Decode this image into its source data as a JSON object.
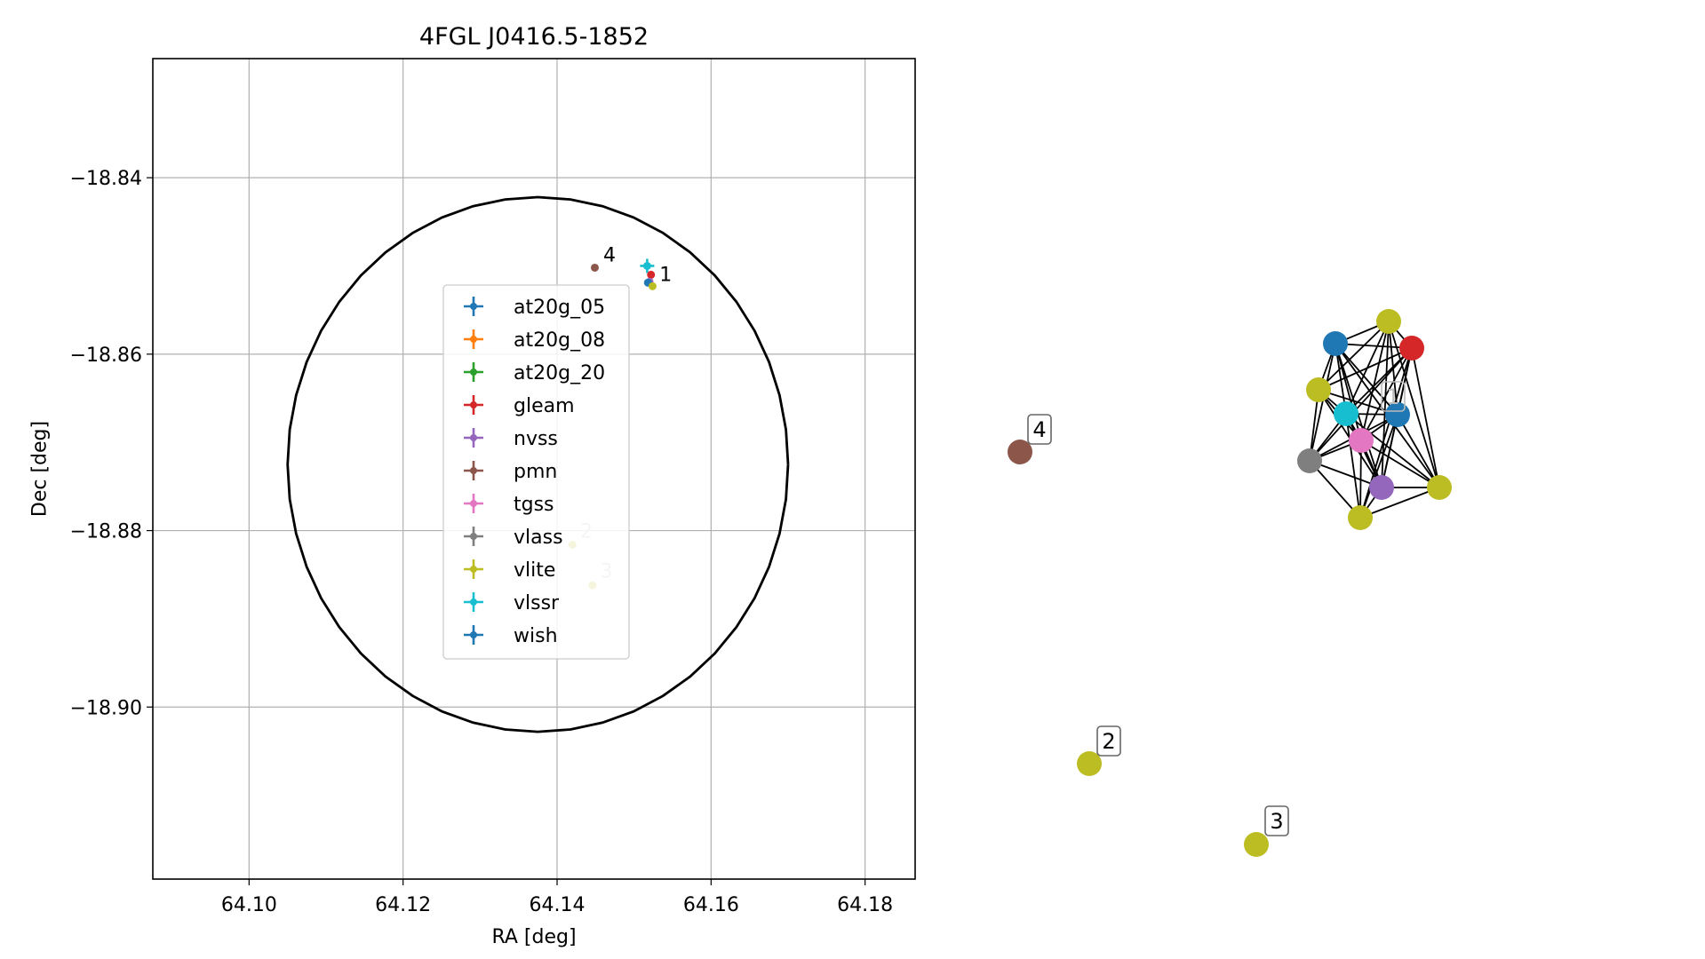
{
  "chart_data": [
    {
      "type": "scatter",
      "title": "4FGL J0416.5-1852",
      "xlabel": "RA [deg]",
      "ylabel": "Dec [deg]",
      "xlim": [
        64.0875,
        64.1865
      ],
      "ylim": [
        -18.9195,
        -18.8265
      ],
      "xticks": [
        64.1,
        64.12,
        64.14,
        64.16,
        64.18
      ],
      "xtick_labels": [
        "64.10",
        "64.12",
        "64.14",
        "64.16",
        "64.18"
      ],
      "yticks": [
        -18.84,
        -18.86,
        -18.88,
        -18.9
      ],
      "ytick_labels": [
        "−18.84",
        "−18.86",
        "−18.88",
        "−18.90"
      ],
      "grid": true,
      "legend_position": "center",
      "error_ellipse": {
        "ra": 64.1375,
        "dec": -18.8725,
        "radius_ra": 0.0325,
        "radius_dec": 0.0303
      },
      "legend": [
        {
          "name": "at20g_05",
          "color": "#1f77b4"
        },
        {
          "name": "at20g_08",
          "color": "#ff7f0e"
        },
        {
          "name": "at20g_20",
          "color": "#2ca02c"
        },
        {
          "name": "gleam",
          "color": "#d62728"
        },
        {
          "name": "nvss",
          "color": "#9467bd"
        },
        {
          "name": "pmn",
          "color": "#8c564b"
        },
        {
          "name": "tgss",
          "color": "#e377c2"
        },
        {
          "name": "vlass",
          "color": "#7f7f7f"
        },
        {
          "name": "vlite",
          "color": "#bcbd22"
        },
        {
          "name": "vlssr",
          "color": "#17becf"
        },
        {
          "name": "wish",
          "color": "#1f77b4"
        }
      ],
      "points": [
        {
          "catalog": "vlssr",
          "ra": 64.1517,
          "dec": -18.85,
          "color": "#17becf",
          "cross": true
        },
        {
          "catalog": "gleam",
          "ra": 64.1522,
          "dec": -18.851,
          "color": "#d62728"
        },
        {
          "catalog": "nvss",
          "ra": 64.152,
          "dec": -18.8518,
          "color": "#9467bd"
        },
        {
          "catalog": "at20g_05",
          "ra": 64.1518,
          "dec": -18.8519,
          "color": "#1f77b4"
        },
        {
          "catalog": "vlite",
          "ra": 64.1524,
          "dec": -18.8523,
          "color": "#bcbd22"
        },
        {
          "catalog": "pmn",
          "ra": 64.1449,
          "dec": -18.8502,
          "color": "#8c564b"
        },
        {
          "catalog": "vlite",
          "ra": 64.142,
          "dec": -18.8816,
          "color": "#bcbd22"
        },
        {
          "catalog": "vlite",
          "ra": 64.1446,
          "dec": -18.8862,
          "color": "#bcbd22"
        }
      ],
      "annotations": [
        {
          "text": "1",
          "ra": 64.1533,
          "dec": -18.8509,
          "color": "#000000"
        },
        {
          "text": "4",
          "ra": 64.146,
          "dec": -18.8487,
          "color": "#000000"
        },
        {
          "text": "2",
          "ra": 64.143,
          "dec": -18.88,
          "color": "#bbbbbb"
        },
        {
          "text": "3",
          "ra": 64.1456,
          "dec": -18.8845,
          "color": "#bbbbbb"
        }
      ]
    },
    {
      "type": "network",
      "nodes": [
        {
          "id": "wish",
          "color": "#1f77b4"
        },
        {
          "id": "vlite_a",
          "color": "#bcbd22"
        },
        {
          "id": "gleam",
          "color": "#d62728"
        },
        {
          "id": "vlite_b",
          "color": "#bcbd22"
        },
        {
          "id": "vlssr",
          "color": "#17becf"
        },
        {
          "id": "at20g",
          "color": "#1f77b4"
        },
        {
          "id": "tgss",
          "color": "#e377c2"
        },
        {
          "id": "vlass",
          "color": "#7f7f7f"
        },
        {
          "id": "nvss",
          "color": "#9467bd"
        },
        {
          "id": "vlite_c",
          "color": "#bcbd22"
        },
        {
          "id": "vlite_d",
          "color": "#bcbd22"
        },
        {
          "id": "pmn",
          "color": "#8c564b"
        },
        {
          "id": "vlite_2",
          "color": "#bcbd22"
        },
        {
          "id": "vlite_3",
          "color": "#bcbd22"
        }
      ],
      "group_labels": [
        {
          "text": "1",
          "style": "faded"
        },
        {
          "text": "4",
          "style": "boxed"
        },
        {
          "text": "2",
          "style": "boxed"
        },
        {
          "text": "3",
          "style": "boxed"
        }
      ]
    }
  ]
}
